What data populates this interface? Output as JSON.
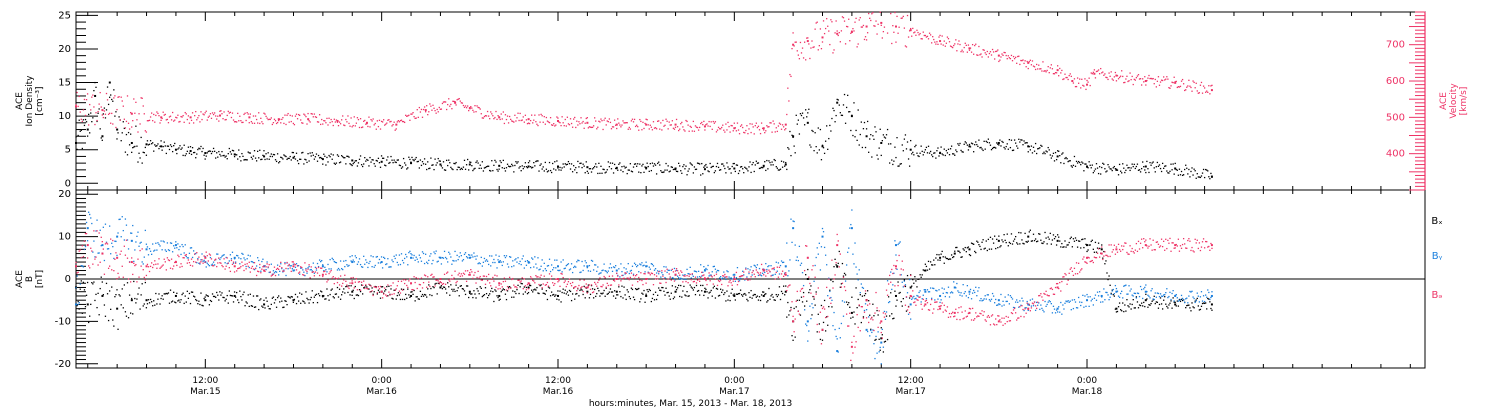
{
  "colors": {
    "black": "#000000",
    "pink": "#ee3366",
    "blue": "#1a7fdd",
    "axis": "#000000"
  },
  "x_axis": {
    "title": "hours:minutes, Mar. 15, 2013 - Mar. 18, 2013",
    "range_hours": [
      3.2,
      95.0
    ],
    "major_ticks": [
      {
        "hour": 12,
        "time": "12:00",
        "date": "Mar.15"
      },
      {
        "hour": 24,
        "time": "0:00",
        "date": "Mar.16"
      },
      {
        "hour": 36,
        "time": "12:00",
        "date": "Mar.16"
      },
      {
        "hour": 48,
        "time": "0:00",
        "date": "Mar.17"
      },
      {
        "hour": 60,
        "time": "12:00",
        "date": "Mar.17"
      },
      {
        "hour": 72,
        "time": "0:00",
        "date": "Mar.18"
      }
    ],
    "minor_step_hours": 2
  },
  "chart_data": [
    {
      "type": "scatter",
      "panel": "plasma",
      "left_axis": {
        "label_lines": [
          "ACE",
          "Ion Density",
          "[cm⁻³]"
        ],
        "ylim": [
          -1,
          25.5
        ],
        "ticks": [
          0,
          5,
          10,
          15,
          20,
          25
        ]
      },
      "right_axis": {
        "label_lines": [
          "ACE",
          "Velocity",
          "[km/s]"
        ],
        "ylim": [
          300,
          790
        ],
        "ticks": [
          400,
          500,
          600,
          700
        ]
      },
      "series": [
        {
          "key": "density",
          "color": "black",
          "axis": "left",
          "x": [
            3.2,
            4,
            4.5,
            5,
            5.5,
            6,
            7,
            8,
            9,
            10,
            11,
            12,
            14,
            16,
            18,
            20,
            22,
            24,
            26,
            28,
            30,
            32,
            34,
            36,
            38,
            40,
            42,
            44,
            46,
            48,
            50,
            51.5,
            52,
            53,
            54,
            55,
            56,
            57,
            58,
            60,
            62,
            64,
            66,
            68,
            70,
            72,
            74,
            76,
            78,
            80.5
          ],
          "y": [
            6,
            8,
            13,
            7,
            15,
            8,
            6,
            5.8,
            5.5,
            5,
            4.8,
            4.5,
            4.3,
            4,
            3.8,
            3.6,
            3.4,
            3.2,
            3,
            2.8,
            2.8,
            2.6,
            2.5,
            2.5,
            2.4,
            2.3,
            2.3,
            2.2,
            2.1,
            2.2,
            2.6,
            2.8,
            7,
            9,
            5.5,
            12,
            10,
            7,
            6,
            5,
            4.5,
            5.5,
            6,
            5.5,
            4,
            2.5,
            2,
            2.5,
            2.2,
            1
          ]
        },
        {
          "key": "velocity",
          "color": "pink",
          "axis": "right",
          "x": [
            3.2,
            5,
            7,
            9,
            11,
            13,
            15,
            17,
            19,
            21,
            23,
            25,
            27,
            29,
            30,
            32,
            34,
            36,
            38,
            40,
            42,
            44,
            46,
            48,
            50,
            51.5,
            52,
            53,
            54,
            55,
            56,
            57,
            58,
            59,
            60,
            62,
            64,
            66,
            68,
            70,
            71,
            72,
            72.5,
            74,
            76,
            78,
            80.5
          ],
          "y": [
            530,
            520,
            510,
            500,
            500,
            505,
            500,
            495,
            495,
            490,
            485,
            480,
            520,
            540,
            525,
            500,
            495,
            490,
            485,
            480,
            480,
            480,
            475,
            470,
            470,
            480,
            700,
            710,
            720,
            730,
            735,
            750,
            760,
            750,
            740,
            710,
            690,
            670,
            650,
            630,
            600,
            590,
            620,
            615,
            600,
            595,
            575
          ]
        }
      ]
    },
    {
      "type": "scatter",
      "panel": "magnetic",
      "left_axis": {
        "label_lines": [
          "ACE",
          "B",
          "[nT]"
        ],
        "ylim": [
          -21,
          21
        ],
        "ticks": [
          -20,
          -10,
          0,
          10,
          20
        ]
      },
      "zero_line": 0,
      "series": [
        {
          "name": "Bₓ",
          "key": "bx",
          "color": "black",
          "x": [
            3.2,
            4,
            5,
            6,
            7,
            8,
            10,
            12,
            14,
            16,
            18,
            20,
            22,
            24,
            26,
            28,
            30,
            32,
            34,
            36,
            38,
            40,
            42,
            44,
            46,
            48,
            50,
            51.5,
            52,
            53,
            54,
            55,
            56,
            57,
            58,
            59,
            60,
            61,
            62,
            63,
            64,
            66,
            68,
            70,
            72,
            73,
            74,
            76,
            78,
            80.5
          ],
          "y": [
            -2,
            -6,
            -4,
            -7,
            -5,
            -5,
            -4,
            -5,
            -4,
            -6,
            -5,
            -4,
            -3,
            -3,
            -4,
            -2,
            -3,
            -4,
            -2,
            -4,
            -3,
            -3,
            -4,
            -3,
            -3,
            -4,
            -4,
            -3,
            -10,
            0,
            -12,
            3,
            -8,
            -5,
            -14,
            -4,
            -2,
            2,
            5,
            6,
            7,
            9,
            10,
            9,
            8,
            7,
            -7,
            -5,
            -6,
            -6
          ]
        },
        {
          "name": "Bᵧ",
          "key": "by",
          "color": "blue",
          "x": [
            3.2,
            4,
            5,
            6,
            7,
            8,
            10,
            12,
            14,
            16,
            18,
            20,
            22,
            24,
            26,
            28,
            30,
            32,
            34,
            36,
            38,
            40,
            42,
            44,
            46,
            48,
            50,
            51.5,
            52,
            53,
            54,
            55,
            56,
            57,
            58,
            59,
            60,
            61,
            62,
            63,
            64,
            66,
            68,
            70,
            72,
            73,
            74,
            76,
            78,
            80.5
          ],
          "y": [
            -6,
            12,
            8,
            10,
            9,
            7,
            8,
            4,
            5,
            3,
            2,
            3,
            4,
            4,
            5,
            5,
            5,
            4,
            4,
            3,
            3,
            2,
            3,
            1,
            2,
            1,
            2,
            3,
            12,
            -10,
            10,
            -17,
            12,
            -12,
            -15,
            8,
            -6,
            -3,
            -4,
            -2,
            -3,
            -5,
            -6,
            -7,
            -5,
            -4,
            -3,
            -3,
            -4,
            -4
          ]
        },
        {
          "name": "Bₔ",
          "key": "bz",
          "color": "pink",
          "x": [
            3.2,
            4,
            5,
            6,
            7,
            8,
            10,
            12,
            14,
            16,
            18,
            20,
            22,
            24,
            26,
            28,
            30,
            32,
            34,
            36,
            38,
            40,
            42,
            44,
            46,
            48,
            50,
            51.5,
            52,
            53,
            54,
            55,
            56,
            57,
            58,
            59,
            60,
            61,
            62,
            63,
            64,
            66,
            68,
            70,
            72,
            73,
            74,
            76,
            78,
            80.5
          ],
          "y": [
            3,
            8,
            6,
            5,
            4,
            3,
            4,
            5,
            3,
            2,
            3,
            1,
            -1,
            -3,
            -1,
            0,
            1,
            -1,
            -1,
            0,
            -2,
            0,
            0,
            1,
            0,
            0,
            2,
            1,
            -10,
            5,
            -12,
            8,
            -16,
            -5,
            -10,
            3,
            -4,
            -6,
            -7,
            -8,
            -8,
            -10,
            -7,
            -2,
            5,
            6,
            7,
            8,
            8,
            8
          ]
        }
      ]
    }
  ]
}
